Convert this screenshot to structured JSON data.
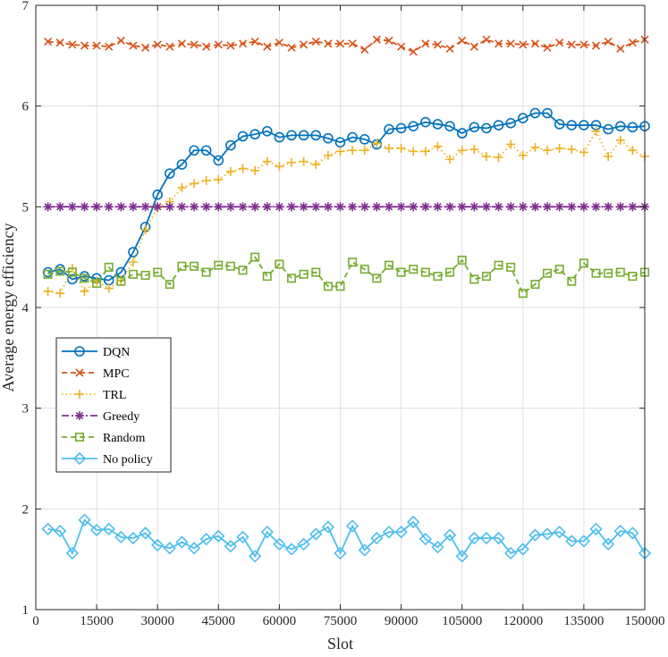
{
  "chart_data": {
    "type": "line",
    "title": "",
    "xlabel": "Slot",
    "ylabel": "Average energy efficiency",
    "xlim": [
      0,
      150000
    ],
    "ylim": [
      1,
      7
    ],
    "xticks": [
      0,
      15000,
      30000,
      45000,
      60000,
      75000,
      90000,
      105000,
      120000,
      135000,
      150000
    ],
    "xtick_labels": [
      "0",
      "15000",
      "30000",
      "45000",
      "60000",
      "75000",
      "90000",
      "105000",
      "120000",
      "135000",
      "150000"
    ],
    "yticks": [
      1,
      2,
      3,
      4,
      5,
      6,
      7
    ],
    "ytick_labels": [
      "1",
      "2",
      "3",
      "4",
      "5",
      "6",
      "7"
    ],
    "grid": true,
    "legend_position": "left-middle",
    "x": [
      3000,
      6000,
      9000,
      12000,
      15000,
      18000,
      21000,
      24000,
      27000,
      30000,
      33000,
      36000,
      39000,
      42000,
      45000,
      48000,
      51000,
      54000,
      57000,
      60000,
      63000,
      66000,
      69000,
      72000,
      75000,
      78000,
      81000,
      84000,
      87000,
      90000,
      93000,
      96000,
      99000,
      102000,
      105000,
      108000,
      111000,
      114000,
      117000,
      120000,
      123000,
      126000,
      129000,
      132000,
      135000,
      138000,
      141000,
      144000,
      147000,
      150000
    ],
    "series": [
      {
        "name": "DQN",
        "color": "#0072BD",
        "marker": "circle",
        "dash": "solid",
        "values": [
          4.35,
          4.38,
          4.28,
          4.31,
          4.29,
          4.27,
          4.35,
          4.55,
          4.8,
          5.12,
          5.33,
          5.42,
          5.56,
          5.56,
          5.46,
          5.61,
          5.7,
          5.72,
          5.75,
          5.69,
          5.71,
          5.71,
          5.71,
          5.68,
          5.64,
          5.69,
          5.67,
          5.62,
          5.77,
          5.78,
          5.8,
          5.84,
          5.82,
          5.8,
          5.73,
          5.79,
          5.78,
          5.81,
          5.83,
          5.88,
          5.93,
          5.93,
          5.82,
          5.81,
          5.81,
          5.81,
          5.77,
          5.8,
          5.79,
          5.8
        ]
      },
      {
        "name": "MPC",
        "color": "#D95319",
        "marker": "x",
        "dash": "dashed",
        "values": [
          6.64,
          6.63,
          6.61,
          6.6,
          6.6,
          6.59,
          6.65,
          6.6,
          6.58,
          6.61,
          6.59,
          6.62,
          6.61,
          6.59,
          6.61,
          6.6,
          6.62,
          6.64,
          6.59,
          6.63,
          6.58,
          6.61,
          6.64,
          6.62,
          6.62,
          6.62,
          6.56,
          6.66,
          6.65,
          6.59,
          6.54,
          6.62,
          6.61,
          6.57,
          6.65,
          6.59,
          6.66,
          6.62,
          6.62,
          6.61,
          6.62,
          6.58,
          6.63,
          6.61,
          6.61,
          6.6,
          6.64,
          6.57,
          6.63,
          6.66
        ]
      },
      {
        "name": "TRL",
        "color": "#EDB120",
        "marker": "plus",
        "dash": "dotted",
        "values": [
          4.16,
          4.14,
          4.39,
          4.16,
          4.26,
          4.19,
          4.27,
          4.45,
          4.77,
          4.99,
          5.05,
          5.19,
          5.23,
          5.26,
          5.27,
          5.35,
          5.38,
          5.36,
          5.45,
          5.4,
          5.44,
          5.45,
          5.42,
          5.51,
          5.55,
          5.56,
          5.56,
          5.63,
          5.58,
          5.58,
          5.55,
          5.55,
          5.6,
          5.47,
          5.56,
          5.57,
          5.5,
          5.49,
          5.62,
          5.51,
          5.59,
          5.56,
          5.58,
          5.57,
          5.54,
          5.75,
          5.5,
          5.66,
          5.56,
          5.5
        ]
      },
      {
        "name": "Greedy",
        "color": "#7E2F8E",
        "marker": "asterisk",
        "dash": "dashdot",
        "values": [
          5.0,
          5.0,
          5.0,
          5.0,
          5.0,
          5.0,
          5.0,
          5.0,
          5.0,
          5.0,
          5.0,
          5.0,
          5.0,
          5.0,
          5.0,
          5.0,
          5.0,
          5.0,
          5.0,
          5.0,
          5.0,
          5.0,
          5.0,
          5.0,
          5.0,
          5.0,
          5.0,
          5.0,
          5.0,
          5.0,
          5.0,
          5.0,
          5.0,
          5.0,
          5.0,
          5.0,
          5.0,
          5.0,
          5.0,
          5.0,
          5.0,
          5.0,
          5.0,
          5.0,
          5.0,
          5.0,
          5.0,
          5.0,
          5.0,
          5.0
        ]
      },
      {
        "name": "Random",
        "color": "#77AC30",
        "marker": "square",
        "dash": "dashed",
        "values": [
          4.33,
          4.36,
          4.35,
          4.29,
          4.24,
          4.4,
          4.26,
          4.33,
          4.32,
          4.35,
          4.23,
          4.41,
          4.41,
          4.35,
          4.42,
          4.41,
          4.37,
          4.5,
          4.31,
          4.43,
          4.29,
          4.33,
          4.35,
          4.21,
          4.21,
          4.45,
          4.38,
          4.29,
          4.42,
          4.35,
          4.38,
          4.35,
          4.31,
          4.35,
          4.47,
          4.28,
          4.31,
          4.42,
          4.4,
          4.14,
          4.23,
          4.34,
          4.38,
          4.26,
          4.44,
          4.34,
          4.34,
          4.35,
          4.31,
          4.35
        ]
      },
      {
        "name": "No policy",
        "color": "#4DBEEE",
        "marker": "diamond",
        "dash": "solid",
        "values": [
          1.8,
          1.78,
          1.56,
          1.89,
          1.79,
          1.8,
          1.72,
          1.71,
          1.76,
          1.64,
          1.61,
          1.67,
          1.61,
          1.7,
          1.73,
          1.63,
          1.72,
          1.53,
          1.77,
          1.65,
          1.6,
          1.65,
          1.75,
          1.82,
          1.56,
          1.83,
          1.59,
          1.71,
          1.77,
          1.77,
          1.87,
          1.7,
          1.62,
          1.74,
          1.53,
          1.71,
          1.71,
          1.71,
          1.56,
          1.6,
          1.74,
          1.75,
          1.77,
          1.68,
          1.68,
          1.8,
          1.65,
          1.78,
          1.76,
          1.56
        ]
      }
    ]
  }
}
